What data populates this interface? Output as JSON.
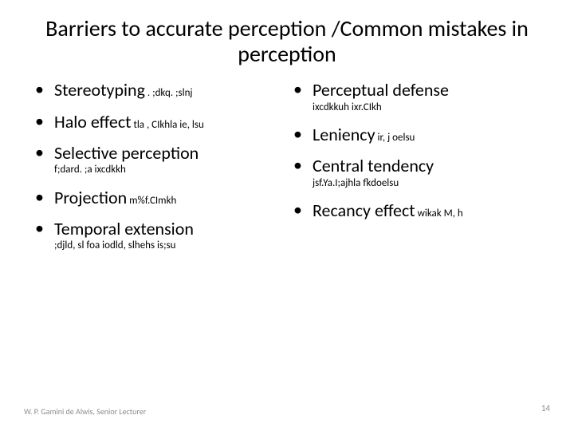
{
  "title": "Barriers to accurate perception /Common mistakes in perception",
  "left": [
    {
      "term": "Stereotyping",
      "sub": ". ;dkq. ;slnj",
      "inline": true
    },
    {
      "term": "Halo effect",
      "sub": "tla , CIkhla ie, lsu",
      "inline": true
    },
    {
      "term": "Selective perception",
      "sub": "f;dard. ;a ixcdkkh",
      "inline": false
    },
    {
      "term": "Projection",
      "sub": "m%f.CImkh",
      "inline": true
    },
    {
      "term": "Temporal extension",
      "sub": ";djld, sl foa iodld, slhehs is;su",
      "inline": false
    }
  ],
  "right": [
    {
      "term": "Perceptual defense",
      "sub": "ixcdkkuh ixr.CIkh",
      "inline": false
    },
    {
      "term": "Leniency",
      "sub": "ir, j oelsu",
      "inline": true
    },
    {
      "term": "Central  tendency",
      "sub": "jsf.Ya.I;ajhla fkdoelsu",
      "inline": false
    },
    {
      "term": "Recancy effect",
      "sub": "wikak M, h",
      "inline": true
    }
  ],
  "footer": {
    "author": "W. P. Gamini de Alwis, Senior\nLecturer",
    "page": "14"
  },
  "colors": {
    "text": "#000000",
    "footer": "#8c8c8c",
    "bg": "#ffffff"
  }
}
